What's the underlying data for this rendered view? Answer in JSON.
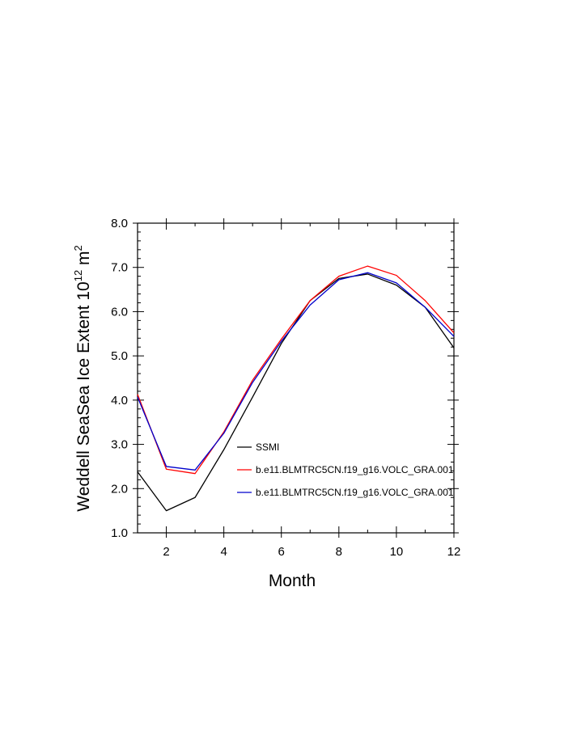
{
  "chart_data": {
    "type": "line",
    "title": "",
    "xlabel": "Month",
    "ylabel": "Weddell SeaSea Ice Extent 10",
    "ylabel_sup1": "12",
    "ylabel_unit": " m",
    "ylabel_sup2": "2",
    "xlim": [
      1,
      12
    ],
    "ylim": [
      1.0,
      8.0
    ],
    "x_ticks": [
      2,
      4,
      6,
      8,
      10,
      12
    ],
    "x_tick_labels": [
      "2",
      "4",
      "6",
      "8",
      "10",
      "12"
    ],
    "y_ticks": [
      1.0,
      2.0,
      3.0,
      4.0,
      5.0,
      6.0,
      7.0,
      8.0
    ],
    "y_tick_labels": [
      "1.0",
      "2.0",
      "3.0",
      "4.0",
      "5.0",
      "6.0",
      "7.0",
      "8.0"
    ],
    "grid": false,
    "legend_position": "bottom-right",
    "x": [
      1,
      2,
      3,
      4,
      5,
      6,
      7,
      8,
      9,
      10,
      11,
      12
    ],
    "series": [
      {
        "name": "SSMI",
        "color": "#000000",
        "values": [
          2.38,
          1.5,
          1.8,
          2.88,
          4.07,
          5.28,
          6.25,
          6.75,
          6.85,
          6.6,
          6.1,
          5.18
        ]
      },
      {
        "name": "b.e11.BLMTRC5CN.f19_g16.VOLC_GRA.001",
        "color": "#ff0000",
        "values": [
          4.13,
          2.44,
          2.34,
          3.28,
          4.45,
          5.38,
          6.25,
          6.8,
          7.03,
          6.82,
          6.25,
          5.52
        ]
      },
      {
        "name": "b.e11.BLMTRC5CN.f19_g16.VOLC_GRA.001",
        "color": "#0000cc",
        "values": [
          4.07,
          2.5,
          2.42,
          3.25,
          4.4,
          5.33,
          6.15,
          6.72,
          6.88,
          6.65,
          6.1,
          5.44
        ]
      }
    ]
  }
}
